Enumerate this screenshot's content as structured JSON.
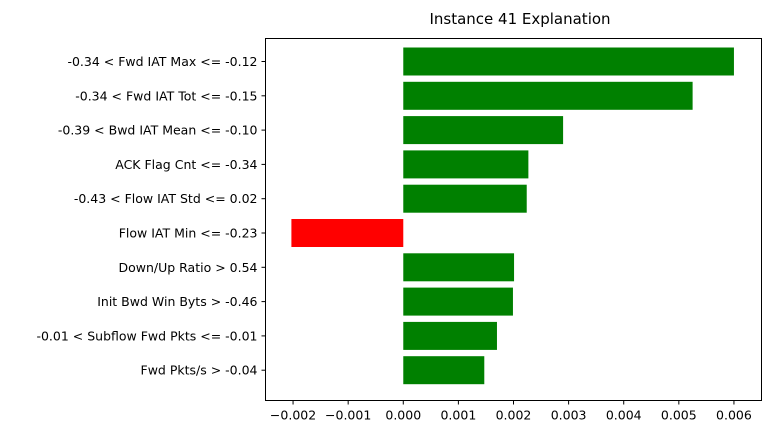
{
  "chart_data": {
    "type": "bar",
    "orientation": "horizontal",
    "title": "Instance 41 Explanation",
    "xlabel": "",
    "ylabel": "",
    "xlim": [
      -0.0025,
      0.0065
    ],
    "xticks": [
      "−0.002",
      "−0.001",
      "0.000",
      "0.001",
      "0.002",
      "0.003",
      "0.004",
      "0.005",
      "0.006"
    ],
    "xtick_values": [
      -0.002,
      -0.001,
      0.0,
      0.001,
      0.002,
      0.003,
      0.004,
      0.005,
      0.006
    ],
    "grid": false,
    "positive_color": "#008000",
    "negative_color": "#ff0000",
    "categories": [
      "-0.34 < Fwd IAT Max <= -0.12",
      "-0.34 < Fwd IAT Tot <= -0.15",
      "-0.39 < Bwd IAT Mean <= -0.10",
      "ACK Flag Cnt <= -0.34",
      "-0.43 < Flow IAT Std <= 0.02",
      "Flow IAT Min <= -0.23",
      "Down/Up Ratio > 0.54",
      "Init Bwd Win Byts > -0.46",
      "-0.01 < Subflow Fwd Pkts <= -0.01",
      "Fwd Pkts/s > -0.04"
    ],
    "values": [
      0.006,
      0.00525,
      0.0029,
      0.00227,
      0.00224,
      -0.00203,
      0.00201,
      0.00199,
      0.0017,
      0.00147
    ]
  }
}
